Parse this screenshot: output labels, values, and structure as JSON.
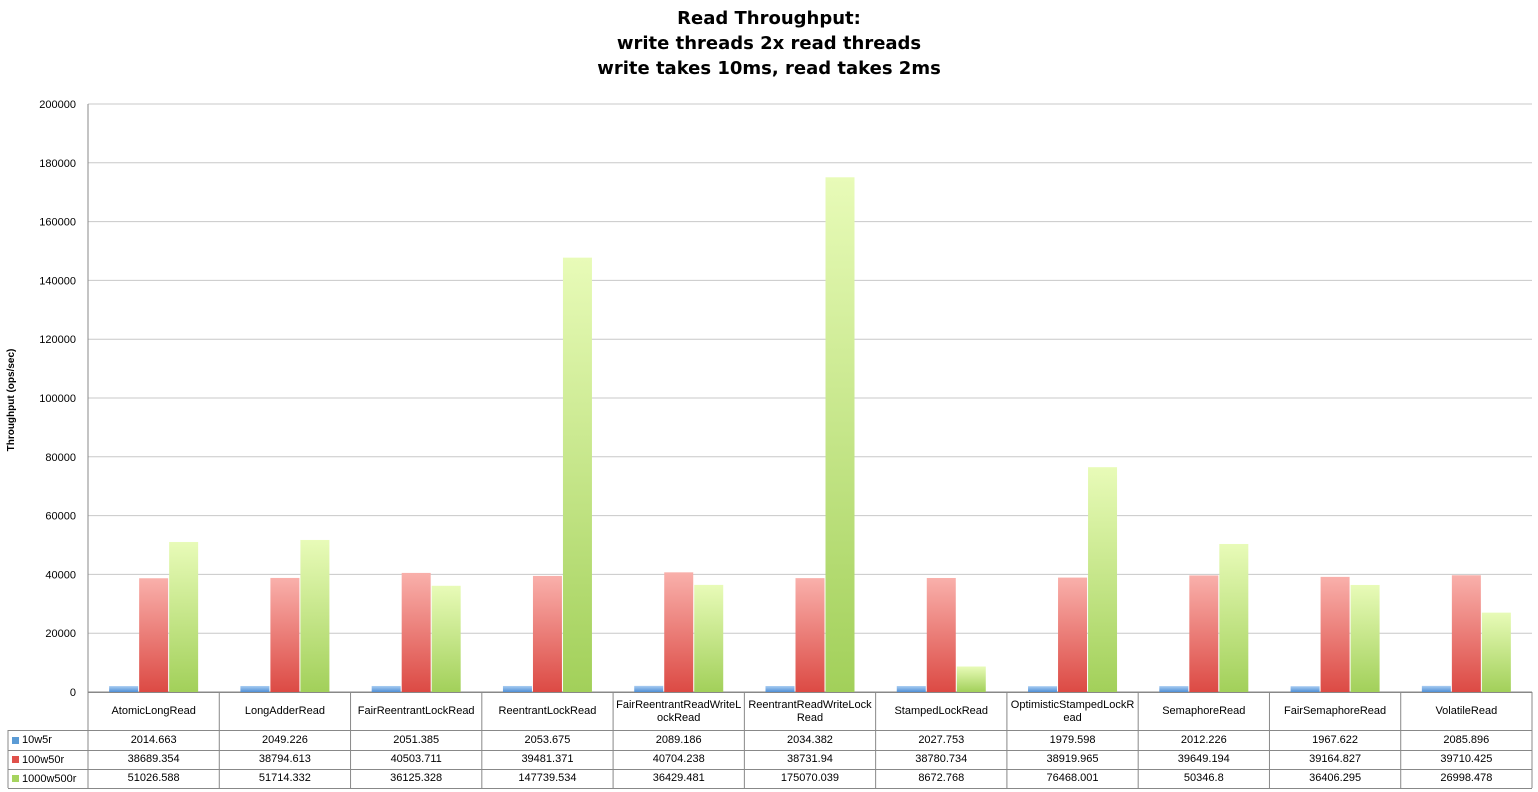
{
  "chart_data": {
    "type": "bar",
    "title_lines": [
      "Read Throughput:",
      "write threads 2x read threads",
      "write takes 10ms, read takes 2ms"
    ],
    "ylabel": "Throughput (ops/sec)",
    "ylim": [
      0,
      200000
    ],
    "yticks": [
      0,
      20000,
      40000,
      60000,
      80000,
      100000,
      120000,
      140000,
      160000,
      180000,
      200000
    ],
    "grid": true,
    "legend": "left (in data table)",
    "categories": [
      "AtomicLongRead",
      "LongAdderRead",
      "FairReentrantLockRead",
      "ReentrantLockRead",
      "FairReentrantReadWriteLockRead",
      "ReentrantReadWriteLockRead",
      "StampedLockRead",
      "OptimisticStampedLockRead",
      "SemaphoreRead",
      "FairSemaphoreRead",
      "VolatileRead"
    ],
    "series": [
      {
        "name": "10w5r",
        "color": "#5b9bd5",
        "values": [
          2014.663,
          2049.226,
          2051.385,
          2053.675,
          2089.186,
          2034.382,
          2027.753,
          1979.598,
          2012.226,
          1967.622,
          2085.896
        ],
        "labels": [
          "2014.663",
          "2049.226",
          "2051.385",
          "2053.675",
          "2089.186",
          "2034.382",
          "2027.753",
          "1979.598",
          "2012.226",
          "1967.622",
          "2085.896"
        ]
      },
      {
        "name": "100w50r",
        "color": "#e0514b",
        "values": [
          38689.354,
          38794.613,
          40503.711,
          39481.371,
          40704.238,
          38731.94,
          38780.734,
          38919.965,
          39649.194,
          39164.827,
          39710.425
        ],
        "labels": [
          "38689.354",
          "38794.613",
          "40503.711",
          "39481.371",
          "40704.238",
          "38731.94",
          "38780.734",
          "38919.965",
          "39649.194",
          "39164.827",
          "39710.425"
        ]
      },
      {
        "name": "1000w500r",
        "color": "#a6d45f",
        "values": [
          51026.588,
          51714.332,
          36125.328,
          147739.534,
          36429.481,
          175070.039,
          8672.768,
          76468.001,
          50346.8,
          36406.295,
          26998.478
        ],
        "labels": [
          "51026.588",
          "51714.332",
          "36125.328",
          "147739.534",
          "36429.481",
          "175070.039",
          "8672.768",
          "76468.001",
          "50346.8",
          "36406.295",
          "26998.478"
        ]
      }
    ]
  },
  "colors": {
    "series_10w5r": "#5b9bd5",
    "series_100w50r": "#e0514b",
    "series_1000w500r": "#a6d45f",
    "grid": "#c8c8c8",
    "axis": "#888888"
  }
}
